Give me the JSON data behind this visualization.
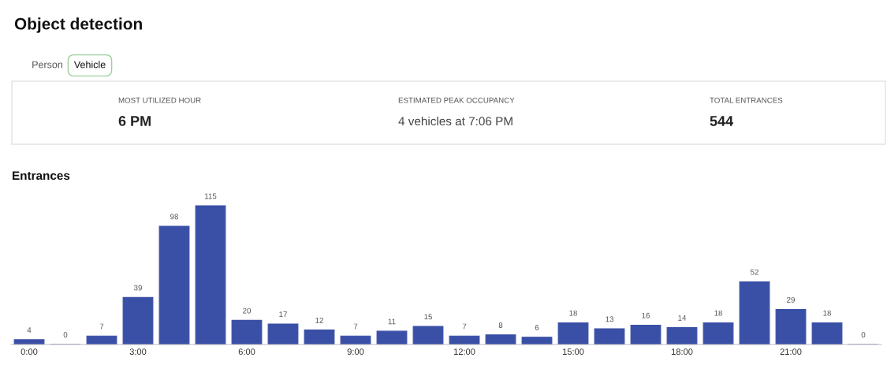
{
  "chart_data": {
    "type": "bar",
    "title": "Object detection",
    "subtitle": "Entrances",
    "annotations": [
      "Person",
      "Vehicle",
      "MOST UTILIZED HOUR",
      "6 PM",
      "ESTIMATED PEAK OCCUPANCY",
      "4 vehicles at 7:06 PM",
      "TOTAL ENTRANCES",
      "544"
    ],
    "categories": [
      "0:00",
      null,
      null,
      "3:00",
      null,
      null,
      "6:00",
      null,
      null,
      "9:00",
      null,
      null,
      "12:00",
      null,
      null,
      "15:00",
      null,
      null,
      "18:00",
      null,
      null,
      "21:00",
      null,
      null
    ],
    "values": [
      4,
      0,
      7,
      39,
      98,
      115,
      20,
      17,
      12,
      7,
      11,
      15,
      7,
      8,
      6,
      18,
      13,
      16,
      14,
      18,
      52,
      29,
      18,
      0
    ],
    "color": "#3a4fa6",
    "data_labels": true,
    "tick_labels": "x",
    "grid": false,
    "legend": false
  }
}
